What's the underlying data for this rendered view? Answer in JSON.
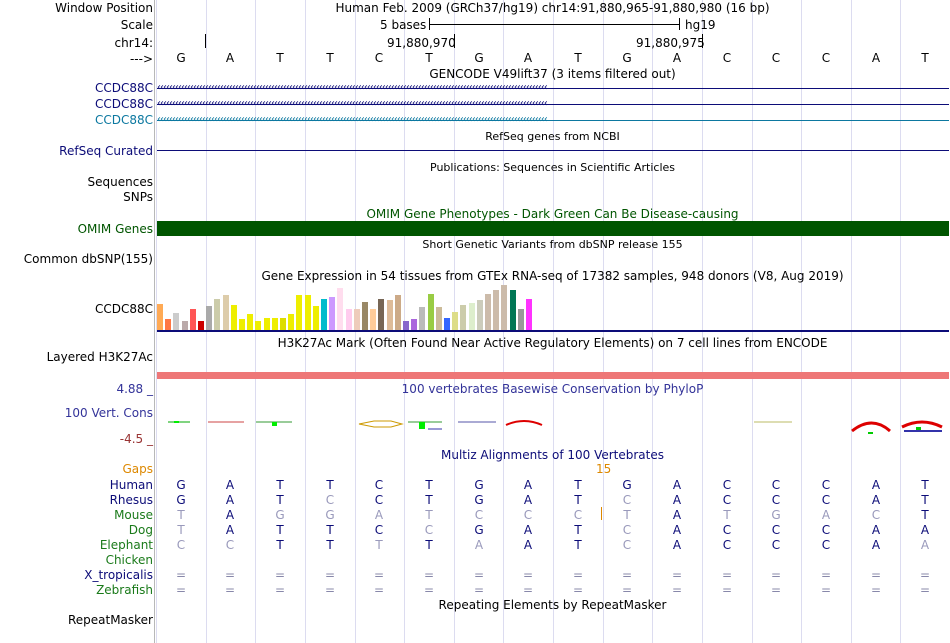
{
  "header": {
    "window_position_label": "Window Position",
    "window_position_value": "Human Feb. 2009 (GRCh37/hg19)   chr14:91,880,965-91,880,980 (16 bp)",
    "scale_label": "Scale",
    "scale_text": "5 bases",
    "scale_assembly": "hg19",
    "chrom_label": "chr14:",
    "coord_1": "91,880,970",
    "coord_2": "91,880,975",
    "strand_label": "--->",
    "sequence": [
      "G",
      "A",
      "T",
      "T",
      "C",
      "T",
      "G",
      "A",
      "T",
      "G",
      "A",
      "C",
      "C",
      "C",
      "A",
      "T"
    ]
  },
  "tracks": {
    "gencode_title": "GENCODE V49lift37 (3 items filtered out)",
    "gencode_items": [
      {
        "label": "CCDC88C",
        "color": "#0c0c78"
      },
      {
        "label": "CCDC88C",
        "color": "#0c0c78"
      },
      {
        "label": "CCDC88C",
        "color": "#0c78a0"
      }
    ],
    "refseq_title": "RefSeq genes from NCBI",
    "refseq_label": "RefSeq Curated",
    "pubs_title": "Publications: Sequences in Scientific Articles",
    "pubs_label_1": "Sequences",
    "pubs_label_2": "SNPs",
    "omim_title": "OMIM Gene Phenotypes - Dark Green Can Be Disease-causing",
    "omim_label": "OMIM Genes",
    "dbsnp_title": "Short Genetic Variants from dbSNP release 155",
    "dbsnp_label": "Common dbSNP(155)",
    "gtex_title": "Gene Expression in 54 tissues from GTEx RNA-seq of 17382 samples, 948 donors (V8, Aug 2019)",
    "gtex_label": "CCDC88C",
    "gtex_bar_colors": [
      "#ffaa55",
      "#ff7744",
      "#cccccc",
      "#bbaaaa",
      "#ff5555",
      "#cc0000",
      "#aaaaaa",
      "#ccccaa",
      "#ddccaa",
      "#eeee00",
      "#eeee00",
      "#eeee00",
      "#eeee00",
      "#eeee00",
      "#eeee00",
      "#dddd00",
      "#eeee00",
      "#eeee00",
      "#eeee00",
      "#eeee00",
      "#00bbcc",
      "#cc99ff",
      "#ffddee",
      "#ffccee",
      "#eeccbb",
      "#998866",
      "#ffcc99",
      "#776655",
      "#ddbb99",
      "#ccaa88",
      "#8866cc",
      "#aa66dd",
      "#bbbbbb",
      "#99cc44",
      "#ccbb99",
      "#3366ff",
      "#dddd88",
      "#ccccaa",
      "#ddeecc",
      "#ccccbb",
      "#ccbbaa",
      "#ccbbaa",
      "#ccbbaa",
      "#007755",
      "#999999",
      "#ff33ff"
    ],
    "gtex_bar_values": [
      0.57,
      0.23,
      0.36,
      0.2,
      0.45,
      0.2,
      0.52,
      0.68,
      0.75,
      0.55,
      0.23,
      0.34,
      0.2,
      0.25,
      0.27,
      0.25,
      0.34,
      0.75,
      0.75,
      0.52,
      0.68,
      0.71,
      0.91,
      0.45,
      0.45,
      0.61,
      0.45,
      0.68,
      0.66,
      0.75,
      0.2,
      0.23,
      0.5,
      0.79,
      0.5,
      0.25,
      0.39,
      0.55,
      0.59,
      0.66,
      0.79,
      0.86,
      0.98,
      0.86,
      0.45,
      0.68
    ],
    "h3k27ac_title": "H3K27Ac Mark (Often Found Near Active Regulatory Elements) on 7 cell lines from ENCODE",
    "h3k27ac_label": "Layered H3K27Ac",
    "phylop_title": "100 vertebrates Basewise Conservation by PhyloP",
    "phylop_max": "4.88 _",
    "phylop_label": "100 Vert. Cons",
    "phylop_min": "-4.5 _",
    "multiz_title": "Multiz Alignments of 100 Vertebrates",
    "gaps_label": "Gaps",
    "gaps_value": "15",
    "species": [
      {
        "name": "Human",
        "color": "#0c0c78",
        "bases": [
          "G",
          "A",
          "T",
          "T",
          "C",
          "T",
          "G",
          "A",
          "T",
          "G",
          "A",
          "C",
          "C",
          "C",
          "A",
          "T"
        ],
        "faded": []
      },
      {
        "name": "Rhesus",
        "color": "#0c0c78",
        "bases": [
          "G",
          "A",
          "T",
          "C",
          "C",
          "T",
          "G",
          "A",
          "T",
          "C",
          "A",
          "C",
          "C",
          "C",
          "A",
          "T"
        ],
        "faded": [
          3,
          9
        ]
      },
      {
        "name": "Mouse",
        "color": "#1a7a1a",
        "bases": [
          "T",
          "A",
          "G",
          "G",
          "A",
          "T",
          "C",
          "C",
          "C",
          "T",
          "A",
          "T",
          "G",
          "A",
          "C",
          "T"
        ],
        "faded": [
          0,
          2,
          3,
          4,
          5,
          6,
          7,
          8,
          9,
          11,
          12,
          13,
          14
        ]
      },
      {
        "name": "Dog",
        "color": "#1a7a1a",
        "bases": [
          "T",
          "A",
          "T",
          "T",
          "C",
          "C",
          "G",
          "A",
          "T",
          "C",
          "A",
          "C",
          "C",
          "C",
          "A",
          "A"
        ],
        "faded": [
          0,
          5,
          9
        ]
      },
      {
        "name": "Elephant",
        "color": "#1a7a1a",
        "bases": [
          "C",
          "C",
          "T",
          "T",
          "T",
          "T",
          "A",
          "A",
          "T",
          "C",
          "A",
          "C",
          "C",
          "C",
          "A",
          "A"
        ],
        "faded": [
          0,
          1,
          4,
          6,
          9,
          15
        ]
      },
      {
        "name": "Chicken",
        "color": "#1a7a1a",
        "bases": [],
        "faded": []
      },
      {
        "name": "X_tropicalis",
        "color": "#0c0c78",
        "bases": [
          "=",
          "=",
          "=",
          "=",
          "=",
          "=",
          "=",
          "=",
          "=",
          "=",
          "=",
          "=",
          "=",
          "=",
          "=",
          "="
        ],
        "faded": []
      },
      {
        "name": "Zebrafish",
        "color": "#1a7a1a",
        "bases": [
          "=",
          "=",
          "=",
          "=",
          "=",
          "=",
          "=",
          "=",
          "=",
          "=",
          "=",
          "=",
          "=",
          "=",
          "=",
          "="
        ],
        "faded": []
      }
    ],
    "repeat_title": "Repeating Elements by RepeatMasker",
    "repeat_label": "RepeatMasker"
  },
  "colors": {
    "omim_green": "#005500",
    "h3k27ac_pink": "#ee7777",
    "gaps_orange": "#dd8800",
    "phylop_blue": "#333399",
    "phylop_red": "#993333"
  }
}
